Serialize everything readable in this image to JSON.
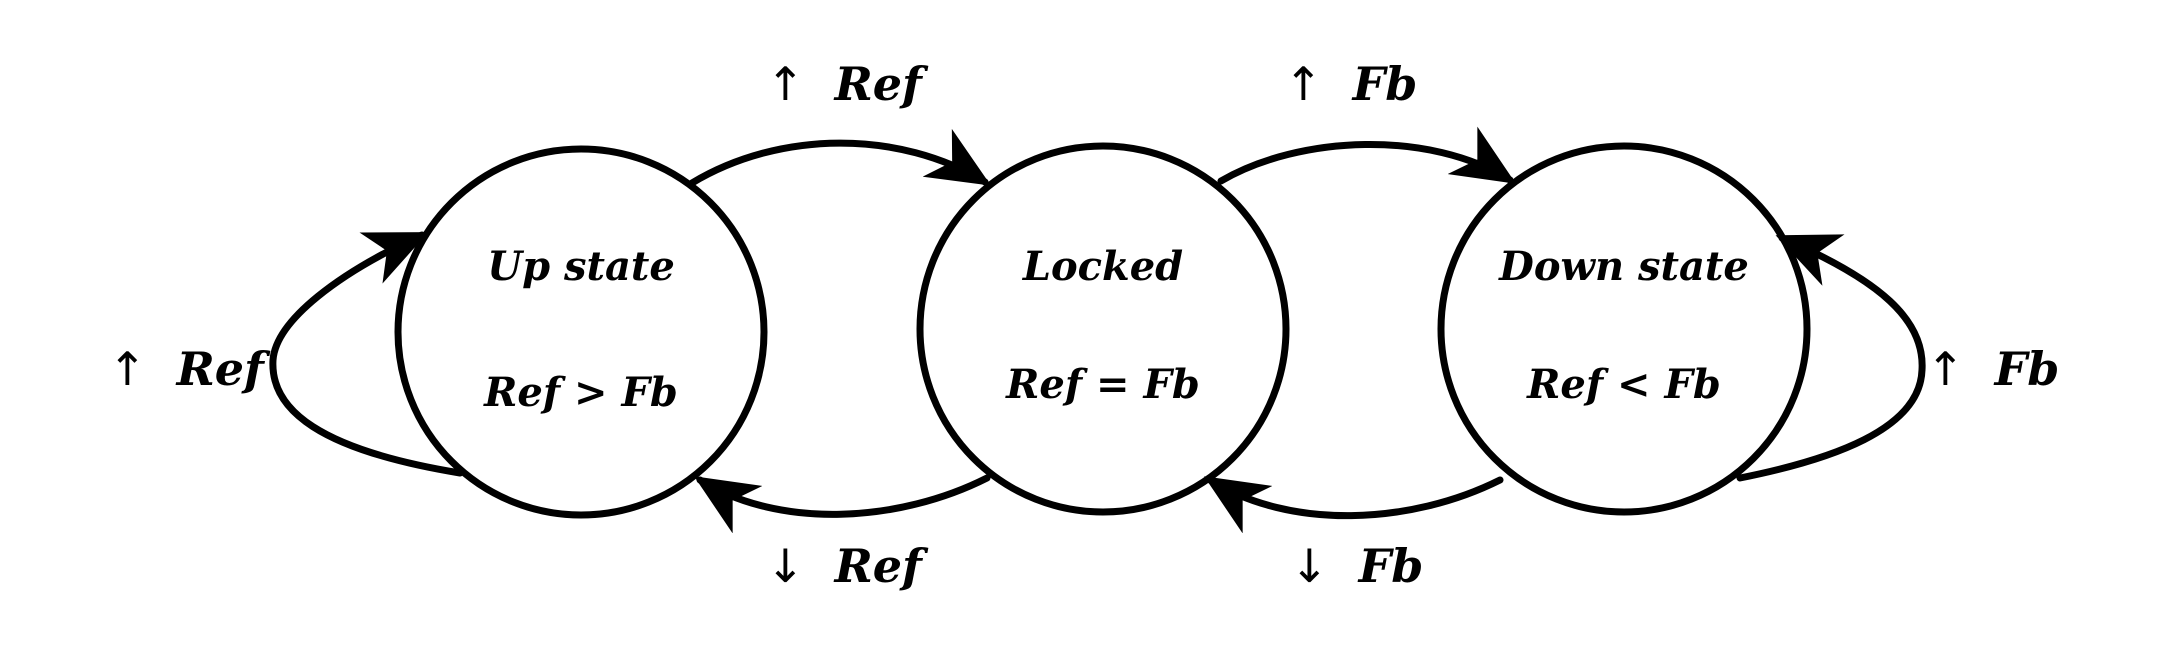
{
  "states": [
    {
      "id": "up",
      "name": "Up state",
      "condition": "Ref > Fb"
    },
    {
      "id": "locked",
      "name": "Locked",
      "condition": "Ref = Fb"
    },
    {
      "id": "down",
      "name": "Down state",
      "condition": "Ref < Fb"
    }
  ],
  "transitions": {
    "up_self": {
      "arrow": "↑",
      "signal": "Ref"
    },
    "up_to_locked": {
      "arrow": "↑",
      "signal": "Ref"
    },
    "locked_to_down": {
      "arrow": "↑",
      "signal": "Fb"
    },
    "down_self": {
      "arrow": "↑",
      "signal": "Fb"
    },
    "locked_to_up": {
      "arrow": "↓",
      "signal": "Ref"
    },
    "down_to_locked": {
      "arrow": "↓",
      "signal": "Fb"
    }
  },
  "colors": {
    "stroke": "#000000",
    "background": "#ffffff"
  }
}
